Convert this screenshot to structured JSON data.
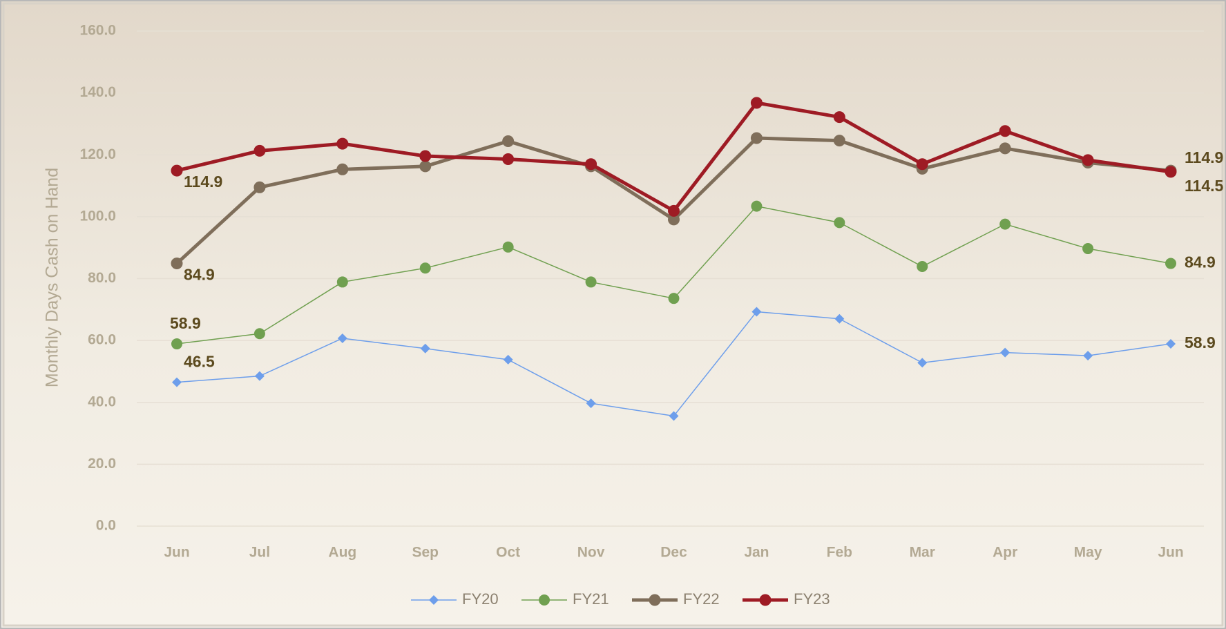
{
  "chart_data": {
    "type": "line",
    "y_axis_label": "Monthly Days Cash on Hand",
    "categories": [
      "Jun",
      "Jul",
      "Aug",
      "Sep",
      "Oct",
      "Nov",
      "Dec",
      "Jan",
      "Feb",
      "Mar",
      "Apr",
      "May",
      "Jun"
    ],
    "ylim": [
      0,
      160
    ],
    "yticks": [
      {
        "value": 0,
        "label": "0.0"
      },
      {
        "value": 20,
        "label": "20.0"
      },
      {
        "value": 40,
        "label": "40.0"
      },
      {
        "value": 60,
        "label": "60.0"
      },
      {
        "value": 80,
        "label": "80.0"
      },
      {
        "value": 100,
        "label": "100.0"
      },
      {
        "value": 120,
        "label": "120.0"
      },
      {
        "value": 140,
        "label": "140.0"
      },
      {
        "value": 160,
        "label": "160.0"
      }
    ],
    "grid": true,
    "legend": "bottom",
    "series": [
      {
        "name": "FY20",
        "color": "#6d9eeb",
        "marker": "diamond",
        "line_width": 1.5,
        "values": [
          46.5,
          48.5,
          60.7,
          57.4,
          53.8,
          39.7,
          35.6,
          69.3,
          67.0,
          52.8,
          56.1,
          55.1,
          58.9
        ]
      },
      {
        "name": "FY21",
        "color": "#70a050",
        "marker": "circle",
        "line_width": 1.5,
        "values": [
          58.9,
          62.2,
          78.9,
          83.4,
          90.2,
          78.9,
          73.6,
          103.4,
          98.1,
          83.9,
          97.6,
          89.7,
          84.9
        ]
      },
      {
        "name": "FY22",
        "color": "#7f6e5a",
        "marker": "circle",
        "line_width": 5,
        "values": [
          84.9,
          109.5,
          115.3,
          116.3,
          124.4,
          116.3,
          99.1,
          125.4,
          124.6,
          115.5,
          122.1,
          117.5,
          114.9
        ]
      },
      {
        "name": "FY23",
        "color": "#9e1b24",
        "marker": "circle",
        "line_width": 5,
        "values": [
          114.9,
          121.3,
          123.6,
          119.6,
          118.6,
          117.0,
          101.9,
          136.8,
          132.2,
          117.0,
          127.7,
          118.3,
          114.5
        ]
      }
    ]
  }
}
